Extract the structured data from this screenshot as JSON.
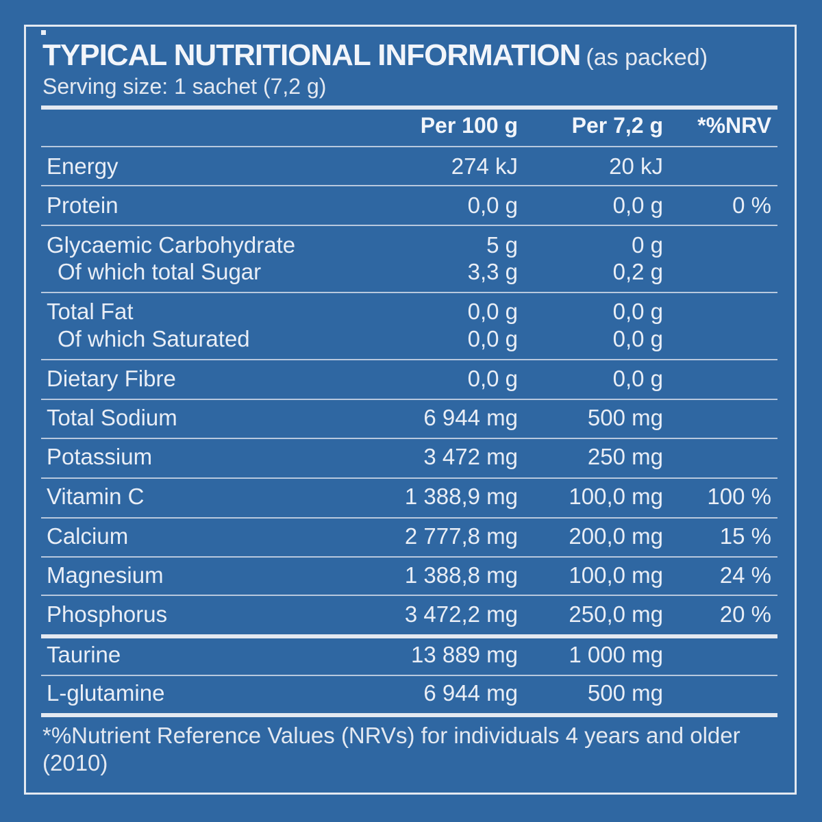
{
  "title": "TYPICAL NUTRITIONAL INFORMATION",
  "title_suffix": "(as packed)",
  "serving": "Serving size: 1 sachet (7,2 g)",
  "headers": {
    "per100": "Per 100 g",
    "perServing": "Per 7,2 g",
    "nrv": "*%NRV"
  },
  "rows": {
    "energy": {
      "name": "Energy",
      "per100": "274 kJ",
      "perServing": "20 kJ",
      "nrv": ""
    },
    "protein": {
      "name": "Protein",
      "per100": "0,0 g",
      "perServing": "0,0 g",
      "nrv": "0 %"
    },
    "carb": {
      "name": "Glycaemic Carbohydrate",
      "per100": "5 g",
      "perServing": "0 g",
      "nrv": ""
    },
    "sugar": {
      "name": "Of which total Sugar",
      "per100": "3,3 g",
      "perServing": "0,2 g",
      "nrv": ""
    },
    "fat": {
      "name": "Total Fat",
      "per100": "0,0 g",
      "perServing": "0,0 g",
      "nrv": ""
    },
    "saturated": {
      "name": "Of which Saturated",
      "per100": "0,0 g",
      "perServing": "0,0 g",
      "nrv": ""
    },
    "fibre": {
      "name": "Dietary Fibre",
      "per100": "0,0 g",
      "perServing": "0,0 g",
      "nrv": ""
    },
    "sodium": {
      "name": "Total Sodium",
      "per100": "6 944 mg",
      "perServing": "500 mg",
      "nrv": ""
    },
    "potassium": {
      "name": "Potassium",
      "per100": "3 472 mg",
      "perServing": "250 mg",
      "nrv": ""
    },
    "vitaminc": {
      "name": "Vitamin C",
      "per100": "1 388,9 mg",
      "perServing": "100,0 mg",
      "nrv": "100 %"
    },
    "calcium": {
      "name": "Calcium",
      "per100": "2 777,8 mg",
      "perServing": "200,0 mg",
      "nrv": "15 %"
    },
    "magnesium": {
      "name": "Magnesium",
      "per100": "1 388,8 mg",
      "perServing": "100,0 mg",
      "nrv": "24 %"
    },
    "phosphorus": {
      "name": "Phosphorus",
      "per100": "3 472,2 mg",
      "perServing": "250,0 mg",
      "nrv": "20 %"
    },
    "taurine": {
      "name": "Taurine",
      "per100": "13 889 mg",
      "perServing": "1 000 mg",
      "nrv": ""
    },
    "glutamine": {
      "name": "L-glutamine",
      "per100": "6 944 mg",
      "perServing": "500 mg",
      "nrv": ""
    }
  },
  "footnote": "*%Nutrient Reference Values (NRVs) for individuals 4 years and older (2010)"
}
